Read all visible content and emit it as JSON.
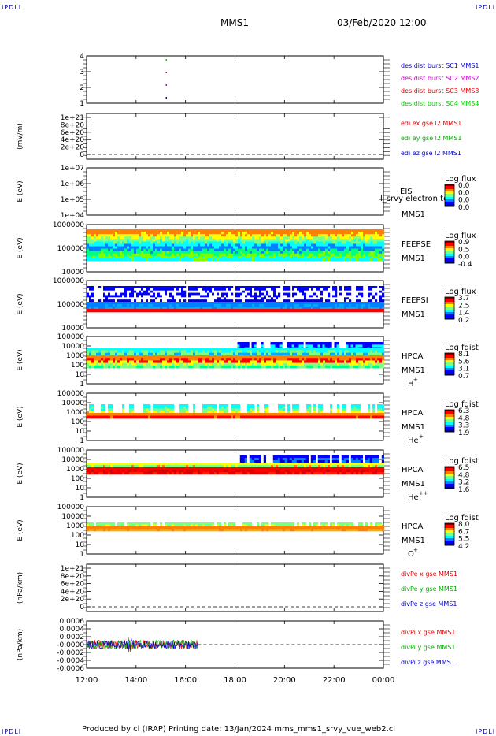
{
  "corner_labels": [
    "IPDLI",
    "IPDLI",
    "IPDLI",
    "IPDLI"
  ],
  "header": {
    "spacecraft": "MMS1",
    "datetime": "03/Feb/2020 12:00"
  },
  "footer": {
    "text": "Produced by cl (IRAP)   Printing date: 13/Jan/2024   mms_mms1_srvy_vue_web2.cl"
  },
  "chart_data": {
    "type": "multi-panel-timeseries",
    "x_tick_labels": [
      "12:00",
      "14:00",
      "16:00",
      "18:00",
      "20:00",
      "22:00",
      "00:00"
    ],
    "x_range_hours": [
      12,
      24
    ],
    "panels": [
      {
        "id": "burst",
        "type": "scatter",
        "y_ticks": [
          "4",
          "3",
          "2",
          "1"
        ],
        "ylabel": "",
        "points": [
          {
            "x": 15.2,
            "y": 4,
            "color": "#00cc00"
          },
          {
            "x": 15.2,
            "y": 3,
            "color": "#dd0000"
          },
          {
            "x": 15.2,
            "y": 2,
            "color": "#cc00cc"
          },
          {
            "x": 15.2,
            "y": 1,
            "color": "#0000cc"
          }
        ],
        "legend": [
          {
            "text": "des dist burst SC1 MMS1",
            "color": "#0000cc"
          },
          {
            "text": "des dist burst SC2 MMS2",
            "color": "#cc00cc"
          },
          {
            "text": "des dist burst SC3 MMS3",
            "color": "#dd0000"
          },
          {
            "text": "des dist burst SC4 MMS4",
            "color": "#00cc00"
          }
        ]
      },
      {
        "id": "edi",
        "type": "line",
        "y_ticks": [
          "1e+21",
          "8e+20",
          "6e+20",
          "4e+20",
          "2e+20",
          "0"
        ],
        "ylabel": "(mV/m)",
        "legend": [
          {
            "text": "edi ex gse l2 MMS1",
            "color": "#dd0000"
          },
          {
            "text": "edi ey gse l2 MMS1",
            "color": "#00aa00"
          },
          {
            "text": "edi ez gse l2 MMS1",
            "color": "#0000cc"
          }
        ]
      },
      {
        "id": "eis",
        "type": "heatmap",
        "y_ticks": [
          "1e+07",
          "1e+06",
          "1e+05",
          "1e+04"
        ],
        "ylabel": "E (eV)",
        "instrument": "EIS",
        "overlay_text": "l_srvy electron to",
        "spacecraft": "MMS1",
        "colorbar": {
          "title": "Log flux",
          "ticks": [
            "0.0",
            "0.0",
            "0.0",
            "0.0"
          ]
        }
      },
      {
        "id": "feepse",
        "type": "heatmap",
        "y_ticks": [
          "1000000",
          "100000",
          "10000"
        ],
        "ylabel": "E (eV)",
        "instrument": "FEEPSE",
        "spacecraft": "MMS1",
        "colorbar": {
          "title": "Log flux",
          "ticks": [
            "0.9",
            "0.5",
            "0.0",
            "-0.4"
          ]
        }
      },
      {
        "id": "feepsi",
        "type": "heatmap",
        "y_ticks": [
          "1000000",
          "100000",
          "10000"
        ],
        "ylabel": "E (eV)",
        "instrument": "FEEPSI",
        "spacecraft": "MMS1",
        "colorbar": {
          "title": "Log flux",
          "ticks": [
            "3.7",
            "2.5",
            "1.4",
            "0.2"
          ]
        }
      },
      {
        "id": "hpca_h",
        "type": "heatmap",
        "y_ticks": [
          "100000",
          "10000",
          "1000",
          "100",
          "10",
          "1"
        ],
        "ylabel": "E (eV)",
        "instrument": "HPCA",
        "spacecraft": "MMS1",
        "species": "H",
        "charge": "+",
        "colorbar": {
          "title": "Log fdist",
          "ticks": [
            "8.1",
            "5.6",
            "3.1",
            "0.7"
          ]
        }
      },
      {
        "id": "hpca_he",
        "type": "heatmap",
        "y_ticks": [
          "100000",
          "10000",
          "1000",
          "100",
          "10",
          "1"
        ],
        "ylabel": "E (eV)",
        "instrument": "HPCA",
        "spacecraft": "MMS1",
        "species": "He",
        "charge": "+",
        "colorbar": {
          "title": "Log fdist",
          "ticks": [
            "6.3",
            "4.8",
            "3.3",
            "1.9"
          ]
        }
      },
      {
        "id": "hpca_hepp",
        "type": "heatmap",
        "y_ticks": [
          "100000",
          "10000",
          "1000",
          "100",
          "10",
          "1"
        ],
        "ylabel": "E (eV)",
        "instrument": "HPCA",
        "spacecraft": "MMS1",
        "species": "He",
        "charge": "++",
        "colorbar": {
          "title": "Log fdist",
          "ticks": [
            "6.5",
            "4.8",
            "3.2",
            "1.6"
          ]
        }
      },
      {
        "id": "hpca_o",
        "type": "heatmap",
        "y_ticks": [
          "100000",
          "10000",
          "1000",
          "100",
          "10",
          "1"
        ],
        "ylabel": "E (eV)",
        "instrument": "HPCA",
        "spacecraft": "MMS1",
        "species": "O",
        "charge": "+",
        "colorbar": {
          "title": "Log fdist",
          "ticks": [
            "8.0",
            "6.7",
            "5.5",
            "4.2"
          ]
        }
      },
      {
        "id": "divpe",
        "type": "line",
        "y_ticks": [
          "1e+21",
          "8e+20",
          "6e+20",
          "4e+20",
          "2e+20",
          "0"
        ],
        "ylabel": "(nPa/km)",
        "legend": [
          {
            "text": "divPe x gse MMS1",
            "color": "#dd0000"
          },
          {
            "text": "divPe y gse MMS1",
            "color": "#00aa00"
          },
          {
            "text": "divPe z gse MMS1",
            "color": "#0000cc"
          }
        ]
      },
      {
        "id": "divpi",
        "type": "line",
        "y_ticks": [
          "0.0006",
          "0.0004",
          "0.0002",
          "-0.0000",
          "-0.0002",
          "-0.0004",
          "-0.0006"
        ],
        "ylabel": "(nPa/km)",
        "x_data_range_hours": [
          12,
          16.5
        ],
        "legend": [
          {
            "text": "divPi x gse MMS1",
            "color": "#dd0000"
          },
          {
            "text": "divPi y gse MMS1",
            "color": "#00aa00"
          },
          {
            "text": "divPi z gse MMS1",
            "color": "#0000cc"
          }
        ]
      }
    ]
  }
}
